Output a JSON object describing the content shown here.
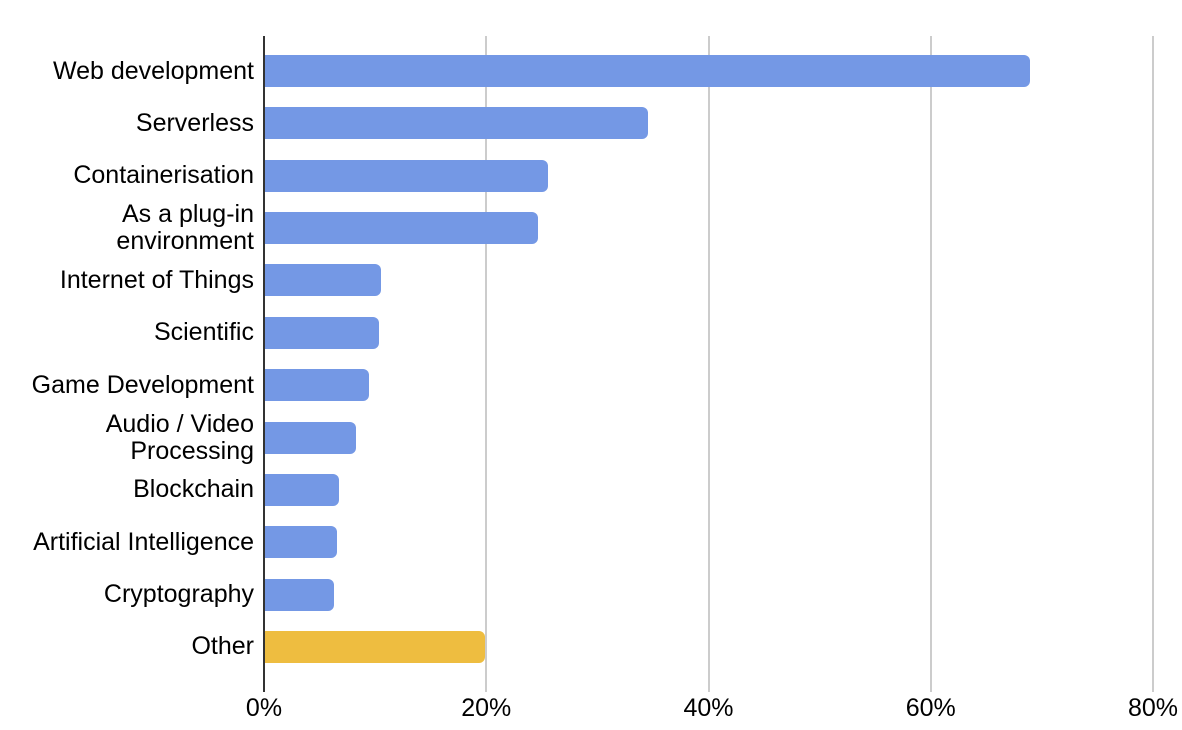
{
  "chart_data": {
    "type": "bar",
    "orientation": "horizontal",
    "title": "",
    "xlabel": "",
    "ylabel": "",
    "unit": "%",
    "categories": [
      "Web development",
      "Serverless",
      "Containerisation",
      "As a plug-in environment",
      "Internet of Things",
      "Scientific",
      "Game Development",
      "Audio / Video Processing",
      "Blockchain",
      "Artificial Intelligence",
      "Cryptography",
      "Other"
    ],
    "values": [
      68.8,
      34.5,
      25.5,
      24.6,
      10.4,
      10.3,
      9.4,
      8.2,
      6.7,
      6.5,
      6.2,
      19.8
    ],
    "bar_colors": [
      "#7498e5",
      "#7498e5",
      "#7498e5",
      "#7498e5",
      "#7498e5",
      "#7498e5",
      "#7498e5",
      "#7498e5",
      "#7498e5",
      "#7498e5",
      "#7498e5",
      "#eebd40"
    ],
    "x_ticks": [
      {
        "value": 0,
        "label": "0%"
      },
      {
        "value": 20,
        "label": "20%"
      },
      {
        "value": 40,
        "label": "40%"
      },
      {
        "value": 60,
        "label": "60%"
      },
      {
        "value": 80,
        "label": "80%"
      }
    ],
    "xlim": [
      0,
      80
    ],
    "grid": "vertical-only",
    "legend": "none",
    "colors": {
      "background": "#ffffff",
      "gridline": "#cccccc",
      "axis_line": "#333333",
      "label": "#000000",
      "bar_default": "#7498e5",
      "bar_other": "#eebd40"
    }
  }
}
